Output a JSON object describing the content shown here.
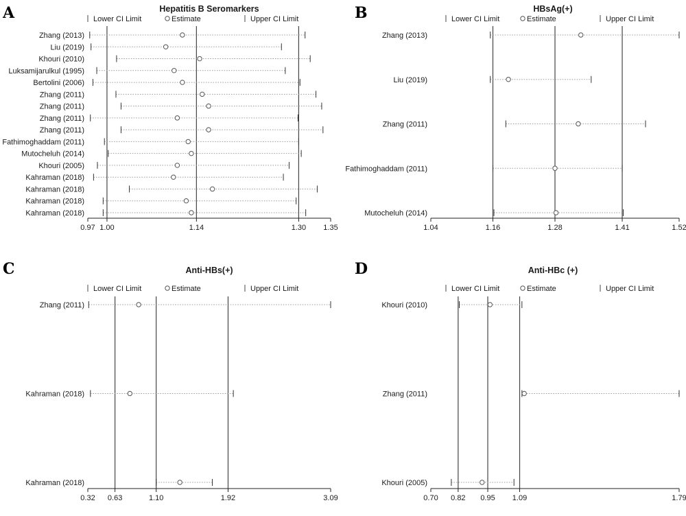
{
  "legend": {
    "lower": "Lower CI Limit",
    "estimate": "Estimate",
    "upper": "Upper CI Limit"
  },
  "colors": {
    "ci_line": "#9a9a9a",
    "ref_line": "#444444",
    "marker": "#555555",
    "axis": "#222222"
  },
  "chart_data": [
    {
      "type": "forest",
      "letter": "A",
      "title": "Hepatitis B Seromarkers",
      "xlim": [
        0.97,
        1.35
      ],
      "xticks": [
        "0.97",
        "1.00",
        "1.14",
        "1.30",
        "1.35"
      ],
      "ref_lines": [
        1.0,
        1.14,
        1.3
      ],
      "studies": [
        {
          "label": "Zhang (2013)",
          "lower": 0.973,
          "estimate": 1.118,
          "upper": 1.31
        },
        {
          "label": "Liu (2019)",
          "lower": 0.975,
          "estimate": 1.092,
          "upper": 1.273
        },
        {
          "label": "Khouri (2010)",
          "lower": 1.015,
          "estimate": 1.145,
          "upper": 1.318
        },
        {
          "label": "Luksamijarulkul (1995)",
          "lower": 0.984,
          "estimate": 1.105,
          "upper": 1.279
        },
        {
          "label": "Bertolini (2006)",
          "lower": 0.978,
          "estimate": 1.118,
          "upper": 1.302
        },
        {
          "label": "Zhang (2011)",
          "lower": 1.014,
          "estimate": 1.149,
          "upper": 1.327
        },
        {
          "label": "Zhang (2011)",
          "lower": 1.022,
          "estimate": 1.159,
          "upper": 1.336
        },
        {
          "label": "Zhang (2011)",
          "lower": 0.974,
          "estimate": 1.11,
          "upper": 1.299
        },
        {
          "label": "Zhang (2011)",
          "lower": 1.022,
          "estimate": 1.159,
          "upper": 1.338
        },
        {
          "label": "Fathimoghaddam (2011)",
          "lower": 0.996,
          "estimate": 1.127,
          "upper": 1.3
        },
        {
          "label": "Mutocheluh (2014)",
          "lower": 1.002,
          "estimate": 1.132,
          "upper": 1.304
        },
        {
          "label": "Khouri (2005)",
          "lower": 0.985,
          "estimate": 1.11,
          "upper": 1.285
        },
        {
          "label": "Kahraman (2018)",
          "lower": 0.979,
          "estimate": 1.104,
          "upper": 1.276
        },
        {
          "label": "Kahraman (2018)",
          "lower": 1.035,
          "estimate": 1.165,
          "upper": 1.329
        },
        {
          "label": "Kahraman (2018)",
          "lower": 0.994,
          "estimate": 1.124,
          "upper": 1.296
        },
        {
          "label": "Kahraman (2018)",
          "lower": 0.994,
          "estimate": 1.132,
          "upper": 1.311
        }
      ]
    },
    {
      "type": "forest",
      "letter": "B",
      "title": "HBsAg(+)",
      "xlim": [
        1.04,
        1.52
      ],
      "xticks": [
        "1.04",
        "1.16",
        "1.28",
        "1.41",
        "1.52"
      ],
      "ref_lines": [
        1.16,
        1.28,
        1.41
      ],
      "studies": [
        {
          "label": "Zhang (2013)",
          "lower": 1.155,
          "estimate": 1.33,
          "upper": 1.52
        },
        {
          "label": "Liu (2019)",
          "lower": 1.155,
          "estimate": 1.19,
          "upper": 1.35
        },
        {
          "label": "Zhang (2011)",
          "lower": 1.185,
          "estimate": 1.325,
          "upper": 1.455
        },
        {
          "label": "Fathimoghaddam (2011)",
          "lower": 1.16,
          "estimate": 1.28,
          "upper": 1.41
        },
        {
          "label": "Mutocheluh (2014)",
          "lower": 1.162,
          "estimate": 1.282,
          "upper": 1.412
        }
      ]
    },
    {
      "type": "forest",
      "letter": "C",
      "title": "Anti-HBs(+)",
      "xlim": [
        0.32,
        3.09
      ],
      "xticks": [
        "0.32",
        "0.63",
        "1.10",
        "1.92",
        "3.09"
      ],
      "ref_lines": [
        0.63,
        1.1,
        1.92
      ],
      "studies": [
        {
          "label": "Zhang (2011)",
          "lower": 0.33,
          "estimate": 0.9,
          "upper": 3.09
        },
        {
          "label": "Kahraman (2018)",
          "lower": 0.35,
          "estimate": 0.8,
          "upper": 1.98
        },
        {
          "label": "Kahraman (2018)",
          "lower": 1.1,
          "estimate": 1.37,
          "upper": 1.74
        }
      ]
    },
    {
      "type": "forest",
      "letter": "D",
      "title": "Anti-HBc (+)",
      "xlim": [
        0.7,
        1.79
      ],
      "xticks": [
        "0.70",
        "0.82",
        "0.95",
        "1.09",
        "1.79"
      ],
      "ref_lines": [
        0.82,
        0.95,
        1.09
      ],
      "studies": [
        {
          "label": "Khouri (2010)",
          "lower": 0.825,
          "estimate": 0.96,
          "upper": 1.1
        },
        {
          "label": "Zhang (2011)",
          "lower": 1.1,
          "estimate": 1.11,
          "upper": 1.79
        },
        {
          "label": "Khouri (2005)",
          "lower": 0.79,
          "estimate": 0.925,
          "upper": 1.065
        }
      ]
    }
  ]
}
